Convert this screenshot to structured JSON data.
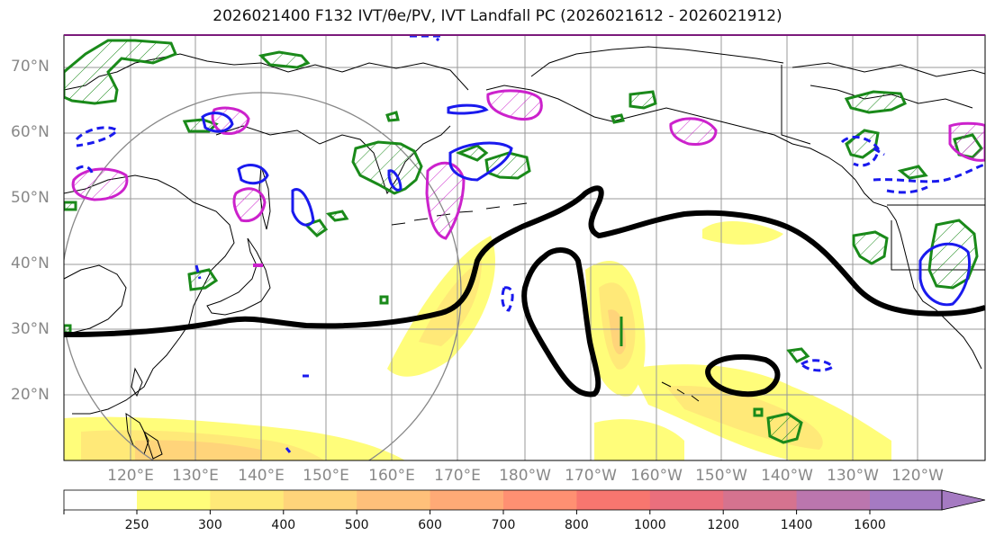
{
  "title": "2026021400 F132 IVT/θe/PV, IVT Landfall PC (2026021612 - 2026021912)",
  "lat_labels": [
    "70°N",
    "60°N",
    "50°N",
    "40°N",
    "30°N",
    "20°N"
  ],
  "lon_labels": [
    "120°E",
    "130°E",
    "140°E",
    "150°E",
    "160°E",
    "170°E",
    "180°W",
    "170°W",
    "160°W",
    "150°W",
    "140°W",
    "130°W",
    "120°W"
  ],
  "colorbar": {
    "ticks": [
      "250",
      "300",
      "400",
      "500",
      "600",
      "700",
      "800",
      "1000",
      "1200",
      "1400",
      "1600"
    ],
    "colors": [
      "#fffd7a",
      "#ffe978",
      "#ffd47a",
      "#ffc07a",
      "#ffaa76",
      "#ff9072",
      "#f8766f",
      "#ea6f7d",
      "#d5738f",
      "#bb76ae",
      "#a57ac2"
    ]
  },
  "legend_colors": {
    "ivt_contour": "#000000",
    "theta_e_positive": "#1a1aee",
    "theta_e_negative_dashed": "#1a1aee",
    "pv_green": "#1a8a1a",
    "pv_magenta": "#cc22cc",
    "circle": "#888888"
  }
}
